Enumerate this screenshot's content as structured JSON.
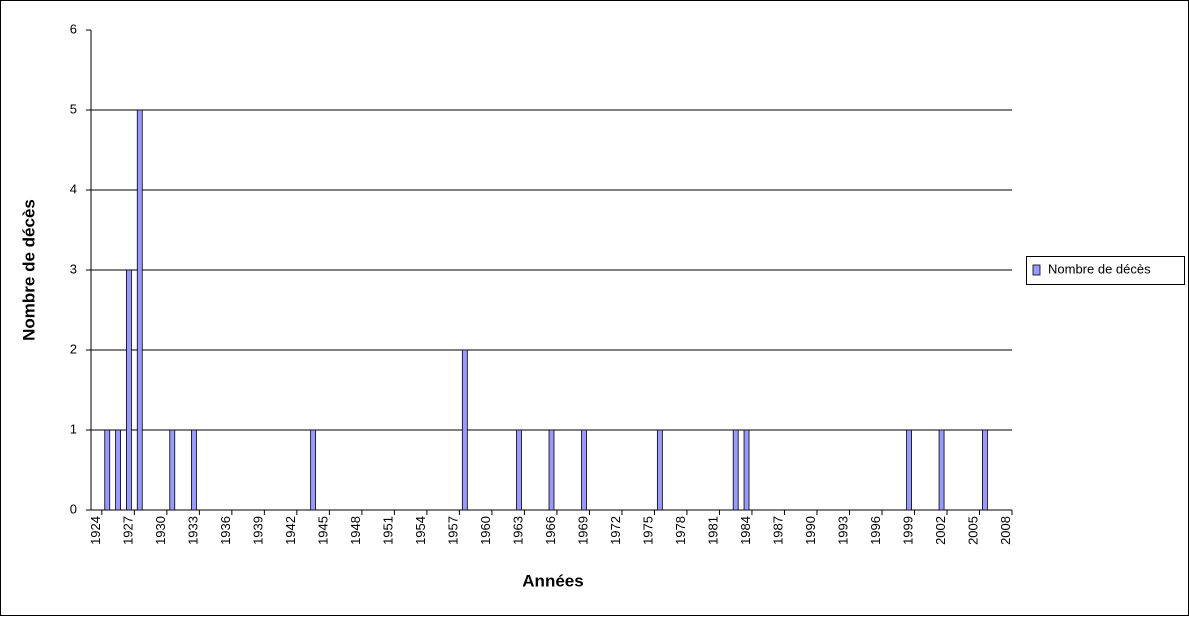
{
  "chart_data": {
    "type": "bar",
    "x_label": "Années",
    "y_label": "Nombre de décès",
    "x": [
      1925,
      1926,
      1927,
      1928,
      1931,
      1933,
      1944,
      1958,
      1963,
      1966,
      1969,
      1976,
      1983,
      1984,
      1999,
      2002,
      2006
    ],
    "series": [
      {
        "name": "Nombre de décès",
        "color": "#9999ff",
        "values": [
          1,
          1,
          3,
          5,
          1,
          1,
          1,
          2,
          1,
          1,
          1,
          1,
          1,
          1,
          1,
          1,
          1
        ]
      }
    ],
    "xlim": [
      1923.5,
      2008.5
    ],
    "xticks": [
      1924,
      1927,
      1930,
      1933,
      1936,
      1939,
      1942,
      1945,
      1948,
      1951,
      1954,
      1957,
      1960,
      1963,
      1966,
      1969,
      1972,
      1975,
      1978,
      1981,
      1984,
      1987,
      1990,
      1993,
      1996,
      1999,
      2002,
      2005,
      2008
    ],
    "ylim": [
      0,
      6
    ],
    "yticks": [
      0,
      1,
      2,
      3,
      4,
      5,
      6
    ],
    "grid": true,
    "legend": "right"
  }
}
